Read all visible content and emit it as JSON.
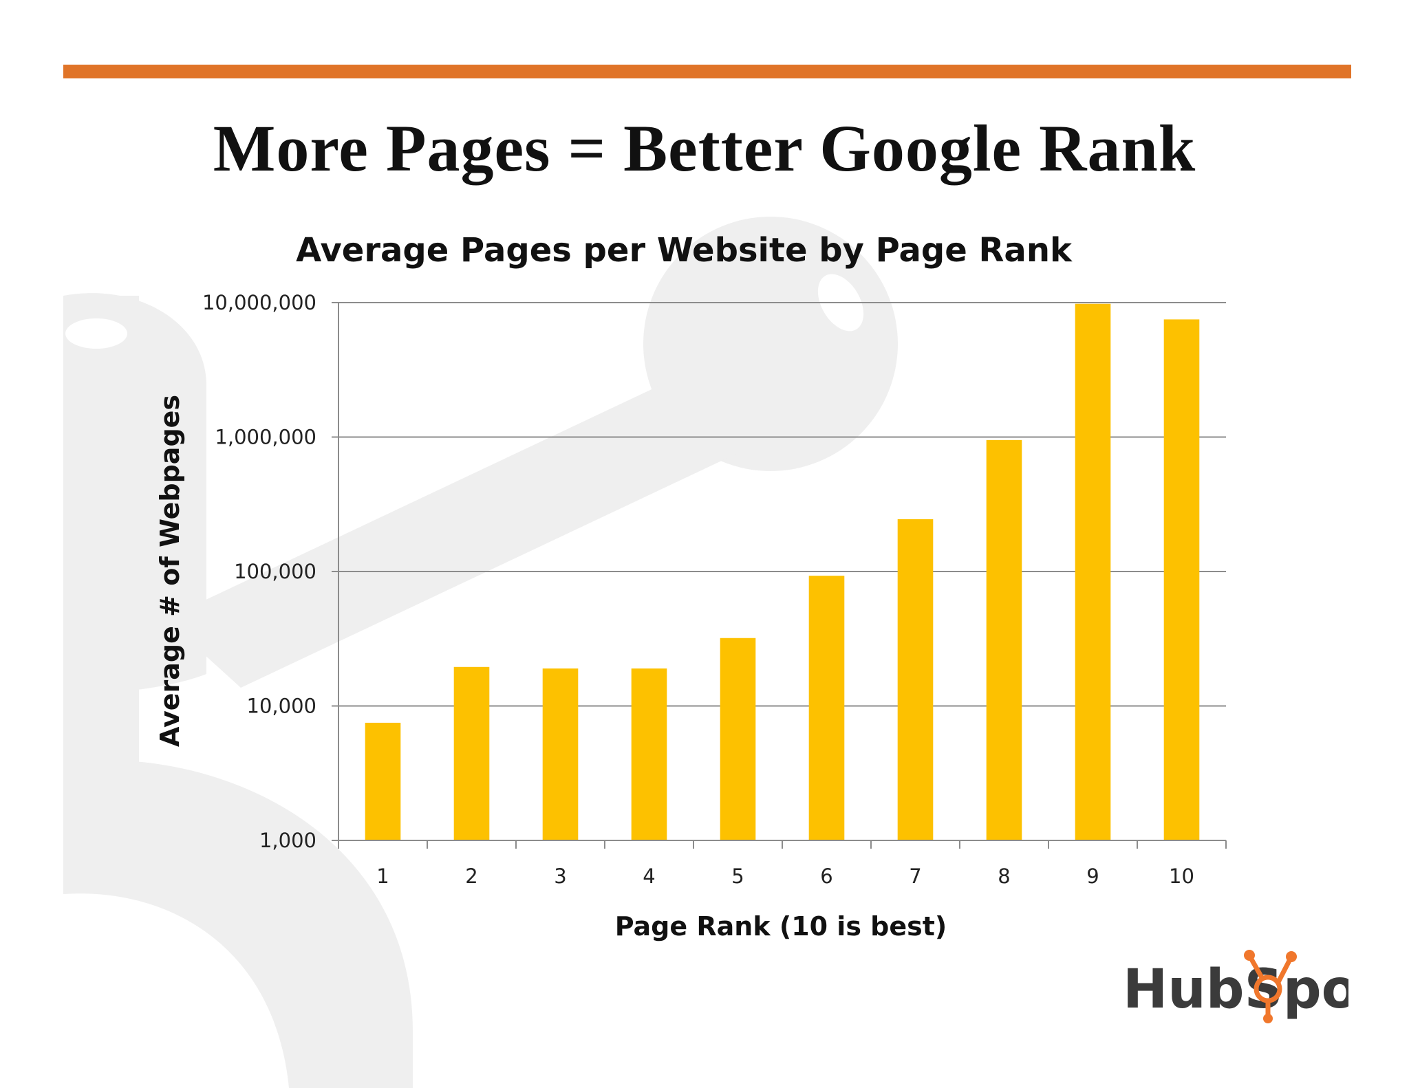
{
  "slide": {
    "title": "More Pages = Better Google Rank",
    "logo_text": "HubSpot",
    "colors": {
      "accent_bar": "#e07428",
      "bar": "#fdc100",
      "watermark": "#eeeeee",
      "logo_orange": "#f0772c"
    }
  },
  "chart_data": {
    "type": "bar",
    "title": "Average Pages per Website by Page Rank",
    "xlabel": "Page Rank (10 is best)",
    "ylabel": "Average # of Webpages",
    "yscale": "log",
    "ylim": [
      1000,
      10000000
    ],
    "yticks": [
      1000,
      10000,
      100000,
      1000000,
      10000000
    ],
    "ytick_labels": [
      "1,000",
      "10,000",
      "100,000",
      "1,000,000",
      "10,000,000"
    ],
    "categories": [
      "1",
      "2",
      "3",
      "4",
      "5",
      "6",
      "7",
      "8",
      "9",
      "10"
    ],
    "values": [
      7500,
      19500,
      19000,
      19000,
      32000,
      93000,
      245000,
      950000,
      9800000,
      7500000
    ],
    "grid": true,
    "legend": "none"
  }
}
